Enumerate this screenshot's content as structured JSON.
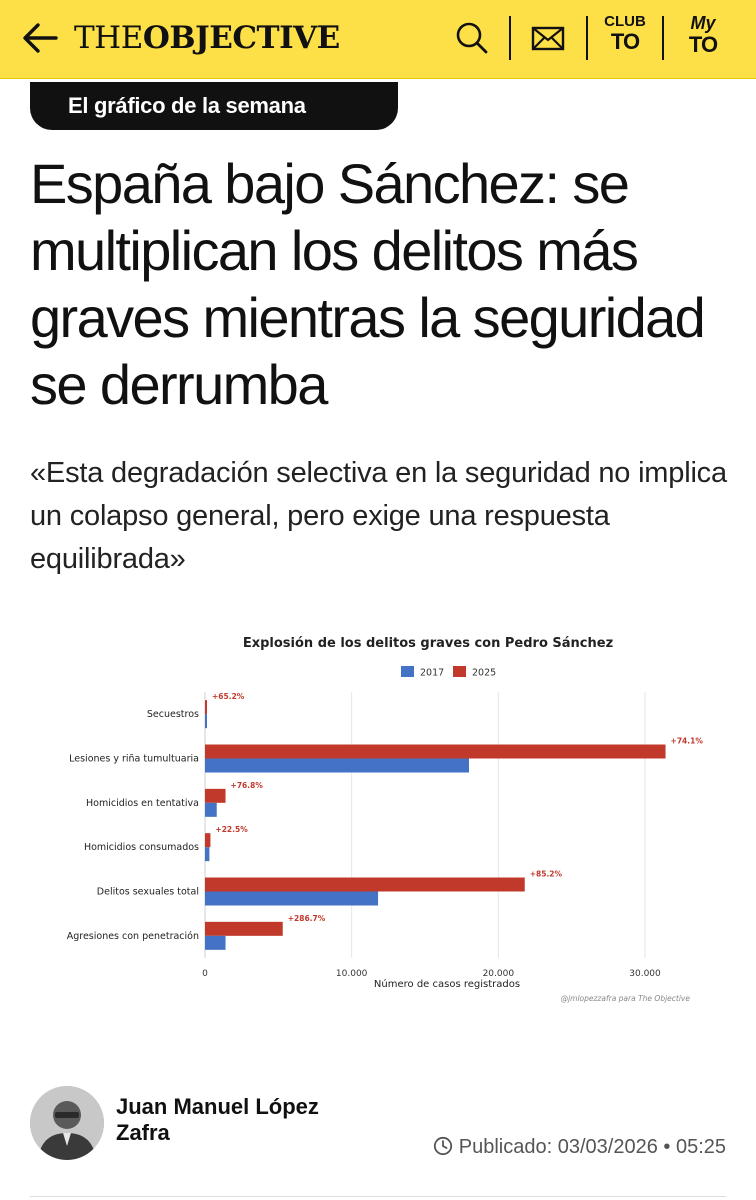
{
  "header": {
    "logo_thin": "THE",
    "logo_bold": "OBJECTIVE",
    "club_line1": "CLUB",
    "club_line2": "TO",
    "my_line1": "My",
    "my_line2": "TO",
    "icons": [
      "back-arrow-icon",
      "search-icon",
      "mail-icon"
    ]
  },
  "article": {
    "section": "El gráfico de la semana",
    "title": "España bajo Sánchez: se multiplican los delitos más graves mientras la seguridad se derrumba",
    "subtitle": "«Esta degradación selectiva en la seguridad no implica un colapso general, pero exige una respuesta equilibrada»"
  },
  "chart_data": {
    "type": "bar",
    "orientation": "horizontal",
    "title": "Explosión de los delitos graves con Pedro Sánchez",
    "xlabel": "Número de casos registrados",
    "ylabel": "",
    "xlim": [
      0,
      33000
    ],
    "x_ticks": [
      0,
      10000,
      20000,
      30000
    ],
    "x_tick_labels": [
      "0",
      "10.000",
      "20.000",
      "30.000"
    ],
    "grid": true,
    "legend_position": "top-center",
    "categories": [
      "Secuestros",
      "Lesiones y riña tumultuaria",
      "Homicidios en tentativa",
      "Homicidios consumados",
      "Delitos sexuales total",
      "Agresiones con penetración"
    ],
    "series": [
      {
        "name": "2017",
        "color": "#4472c4",
        "values": [
          70,
          18000,
          800,
          300,
          11800,
          1400
        ]
      },
      {
        "name": "2025",
        "color": "#c0392b",
        "values": [
          115,
          31400,
          1400,
          370,
          21800,
          5300
        ]
      }
    ],
    "annotations": [
      "+65.2%",
      "+74.1%",
      "+76.8%",
      "+22.5%",
      "+85.2%",
      "+286.7%"
    ],
    "credit": "@jmlopezzafra para The Objective"
  },
  "author": {
    "name": "Juan Manuel López Zafra"
  },
  "meta": {
    "published_label": "Publicado: 03/03/2026 • 05:25"
  }
}
